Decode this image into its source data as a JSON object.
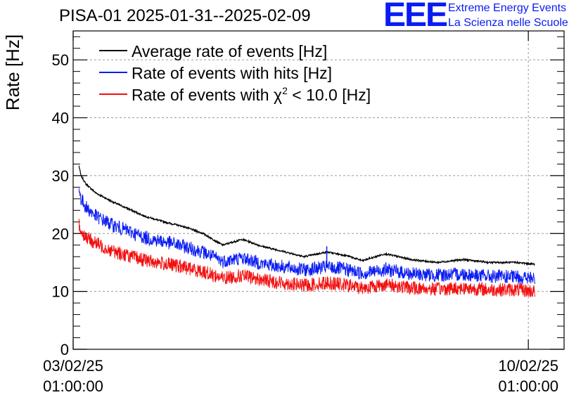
{
  "logo": {
    "mark": "EEE",
    "line1": "Extreme Energy Events",
    "line2": "La Scienza nelle Scuole",
    "color": "#0a1cf2"
  },
  "chart_data": {
    "type": "line",
    "title": "PISA-01 2025-01-31--2025-02-09",
    "xlabel": "",
    "ylabel": "Rate [Hz]",
    "ylim": [
      0,
      55
    ],
    "yticks": [
      0,
      10,
      20,
      30,
      40,
      50
    ],
    "grid": true,
    "legend_position": "top-left",
    "x_unit": "days since 03/02/25 01:00:00",
    "xlim": [
      -0.0,
      7.55
    ],
    "xtick_labels": [
      {
        "x": 0,
        "date": "03/02/25",
        "time": "01:00:00"
      },
      {
        "x": 7,
        "date": "10/02/25",
        "time": "01:00:00"
      }
    ],
    "series": [
      {
        "name": "Average rate of events [Hz]",
        "color": "#000000",
        "noise": 0.15,
        "x": [
          0.09,
          0.12,
          0.2,
          0.35,
          0.6,
          0.9,
          1.1,
          1.4,
          1.7,
          2.0,
          2.3,
          2.6,
          2.9,
          3.2,
          3.55,
          3.9,
          4.2,
          4.45,
          4.8,
          5.2,
          5.6,
          6.0,
          6.4,
          6.8,
          7.1,
          6.98
        ],
        "y": [
          31.7,
          30.0,
          28.5,
          27.0,
          25.5,
          24.0,
          23.0,
          22.0,
          21.2,
          20.0,
          18.0,
          19.0,
          17.8,
          17.0,
          16.0,
          16.8,
          16.2,
          15.3,
          16.5,
          15.5,
          15.0,
          15.5,
          15.0,
          15.0,
          14.7,
          14.5
        ]
      },
      {
        "name": "Rate of events with hits [Hz]",
        "color": "#0a1cf2",
        "noise": 1.2,
        "x": [
          0.09,
          0.12,
          0.2,
          0.35,
          0.6,
          0.9,
          1.1,
          1.4,
          1.7,
          2.0,
          2.3,
          2.6,
          2.9,
          3.2,
          3.55,
          3.9,
          4.2,
          4.45,
          4.8,
          5.2,
          5.6,
          6.0,
          6.4,
          6.8,
          7.1,
          6.98
        ],
        "y": [
          27.5,
          26.0,
          24.5,
          23.0,
          21.5,
          20.2,
          19.3,
          18.6,
          17.8,
          16.8,
          15.2,
          15.8,
          14.8,
          14.3,
          13.7,
          14.2,
          13.8,
          13.1,
          13.8,
          13.0,
          12.8,
          13.0,
          12.6,
          12.5,
          12.2,
          12.0
        ],
        "spike": {
          "x": 3.9,
          "y": 17.8
        }
      },
      {
        "name": "Rate of events with χ² < 10.0 [Hz]",
        "color": "#f20f0f",
        "noise": 1.2,
        "x": [
          0.09,
          0.12,
          0.2,
          0.35,
          0.6,
          0.9,
          1.1,
          1.4,
          1.7,
          2.0,
          2.3,
          2.6,
          2.9,
          3.2,
          3.55,
          3.9,
          4.2,
          4.45,
          4.8,
          5.2,
          5.6,
          6.0,
          6.4,
          6.8,
          7.1,
          6.98
        ],
        "y": [
          21.5,
          20.5,
          19.3,
          18.3,
          17.0,
          16.0,
          15.4,
          14.8,
          14.2,
          13.4,
          12.3,
          12.7,
          12.0,
          11.5,
          11.0,
          11.5,
          11.1,
          10.6,
          11.2,
          10.6,
          10.4,
          10.6,
          10.3,
          10.3,
          10.0,
          9.8
        ]
      }
    ],
    "legend": [
      {
        "label": "Average rate of events [Hz]",
        "color": "#000000"
      },
      {
        "label": "Rate of events with hits [Hz]",
        "color": "#0a1cf2"
      },
      {
        "label_pre": "Rate of events with ",
        "label_sym": "χ",
        "label_sup": "2",
        "label_post": " < 10.0 [Hz]",
        "color": "#f20f0f"
      }
    ]
  }
}
